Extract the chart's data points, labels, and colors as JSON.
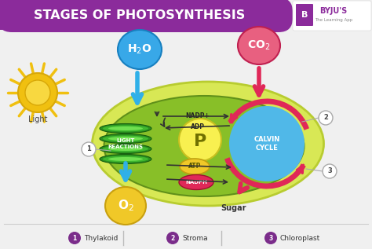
{
  "title": "STAGES OF PHOTOSYNTHESIS",
  "title_bg": "#8b2b9b",
  "title_color": "#ffffff",
  "bg_color": "#f0f0f0",
  "light_label": "Light",
  "nadp_label": "NADP+",
  "adp_label": "ADP",
  "sugar_label": "Sugar",
  "light_reactions_label": "LIGHT\nREACTIONS",
  "calvin_cycle_label": "CALVIN\nCYCLE",
  "legend": [
    {
      "num": "1",
      "text": "Thylakoid"
    },
    {
      "num": "2",
      "text": "Stroma"
    },
    {
      "num": "3",
      "text": "Chloroplast"
    }
  ],
  "chloroplast_outer_color": "#d8e855",
  "chloroplast_outer_border": "#b8cc30",
  "chloroplast_inner_color": "#88bf28",
  "chloroplast_inner_border": "#60901a",
  "thylakoid_dark": "#2a9020",
  "thylakoid_mid": "#40b830",
  "thylakoid_light": "#70e050",
  "calvin_fill": "#50b8e8",
  "calvin_arrow_color": "#e02858",
  "h2o_color": "#38a8e8",
  "h2o_border": "#1880c0",
  "co2_color": "#e86080",
  "co2_border": "#c02050",
  "o2_color": "#f0c828",
  "o2_border": "#c8a010",
  "p_color": "#f8f050",
  "p_border": "#c8c020",
  "atp_color": "#f0c828",
  "atp_border": "#c0a010",
  "nadph_color": "#e02858",
  "nadph_border": "#a01030",
  "sun_outer": "#f0c010",
  "sun_inner": "#f8d840",
  "arrow_blue": "#30b0e8",
  "arrow_red": "#e02858",
  "arrow_black": "#333333",
  "legend_purple": "#7b2d8b",
  "title_purple": "#8b2b9b"
}
